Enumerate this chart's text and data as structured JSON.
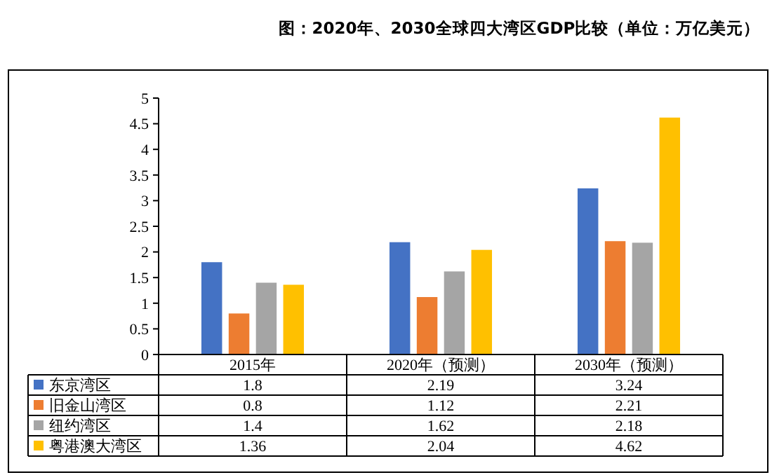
{
  "chart_data": {
    "type": "bar",
    "title": "图：2020年、2030全球四大湾区GDP比较（单位：万亿美元）",
    "categories": [
      "2015年",
      "2020年（预测）",
      "2030年（预测）"
    ],
    "series": [
      {
        "name": "东京湾区",
        "color": "#4472c4",
        "values": [
          1.8,
          2.19,
          3.24
        ]
      },
      {
        "name": "旧金山湾区",
        "color": "#ed7d31",
        "values": [
          0.8,
          1.12,
          2.21
        ]
      },
      {
        "name": "纽约湾区",
        "color": "#a5a5a5",
        "values": [
          1.4,
          1.62,
          2.18
        ]
      },
      {
        "name": "粤港澳大湾区",
        "color": "#ffc000",
        "values": [
          1.36,
          2.04,
          4.62
        ]
      }
    ],
    "ylim": [
      0,
      5
    ],
    "yticks": [
      0,
      0.5,
      1,
      1.5,
      2,
      2.5,
      3,
      3.5,
      4,
      4.5,
      5
    ],
    "grid": false,
    "legend": "bottom",
    "data_labels": true
  }
}
